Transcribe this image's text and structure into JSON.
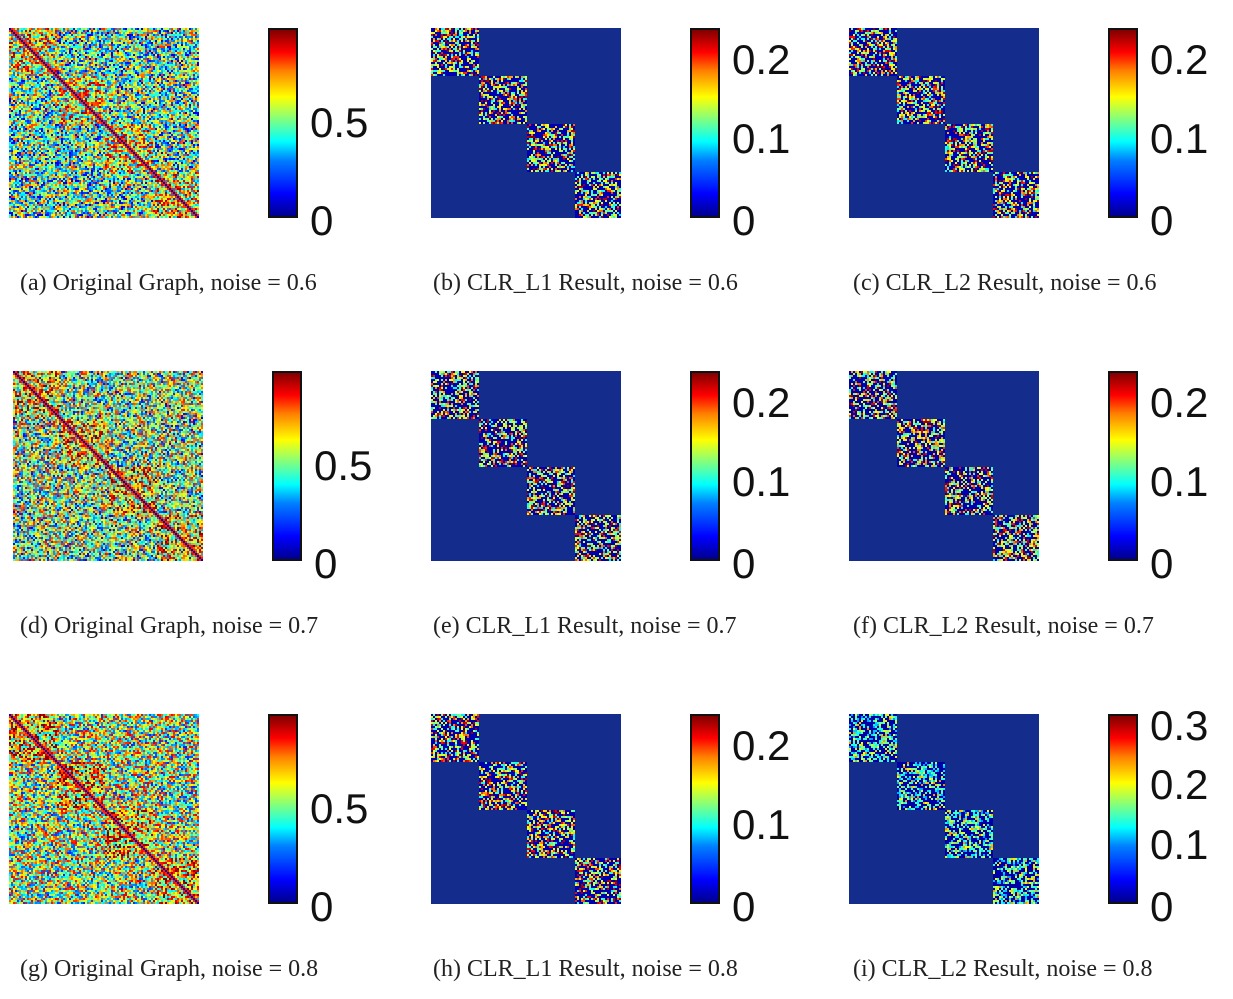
{
  "figure": {
    "panels": [
      {
        "id": "a",
        "caption": "(a) Original Graph, noise = 0.6",
        "kind": "original",
        "noise": 0.6,
        "colorbar_ticks": [
          {
            "label": "0",
            "value": 0
          },
          {
            "label": "0.5",
            "value": 0.5
          }
        ],
        "colorbar_max": 1.0
      },
      {
        "id": "b",
        "caption": "(b) CLR_L1 Result, noise = 0.6",
        "kind": "result",
        "noise": 0.6,
        "colorbar_ticks": [
          {
            "label": "0",
            "value": 0
          },
          {
            "label": "0.1",
            "value": 0.1
          },
          {
            "label": "0.2",
            "value": 0.2
          }
        ],
        "colorbar_max": 0.24
      },
      {
        "id": "c",
        "caption": "(c) CLR_L2 Result, noise = 0.6",
        "kind": "result",
        "noise": 0.6,
        "colorbar_ticks": [
          {
            "label": "0",
            "value": 0
          },
          {
            "label": "0.1",
            "value": 0.1
          },
          {
            "label": "0.2",
            "value": 0.2
          }
        ],
        "colorbar_max": 0.24
      },
      {
        "id": "d",
        "caption": "(d) Original Graph, noise = 0.7",
        "kind": "original",
        "noise": 0.7,
        "colorbar_ticks": [
          {
            "label": "0",
            "value": 0
          },
          {
            "label": "0.5",
            "value": 0.5
          }
        ],
        "colorbar_max": 1.0
      },
      {
        "id": "e",
        "caption": "(e) CLR_L1 Result, noise = 0.7",
        "kind": "result",
        "noise": 0.7,
        "colorbar_ticks": [
          {
            "label": "0",
            "value": 0
          },
          {
            "label": "0.1",
            "value": 0.1
          },
          {
            "label": "0.2",
            "value": 0.2
          }
        ],
        "colorbar_max": 0.24
      },
      {
        "id": "f",
        "caption": "(f) CLR_L2 Result, noise = 0.7",
        "kind": "result",
        "noise": 0.7,
        "colorbar_ticks": [
          {
            "label": "0",
            "value": 0
          },
          {
            "label": "0.1",
            "value": 0.1
          },
          {
            "label": "0.2",
            "value": 0.2
          }
        ],
        "colorbar_max": 0.24
      },
      {
        "id": "g",
        "caption": "(g) Original Graph, noise = 0.8",
        "kind": "original",
        "noise": 0.8,
        "colorbar_ticks": [
          {
            "label": "0",
            "value": 0
          },
          {
            "label": "0.5",
            "value": 0.5
          }
        ],
        "colorbar_max": 1.0
      },
      {
        "id": "h",
        "caption": "(h) CLR_L1 Result, noise = 0.8",
        "kind": "result",
        "noise": 0.8,
        "colorbar_ticks": [
          {
            "label": "0",
            "value": 0
          },
          {
            "label": "0.1",
            "value": 0.1
          },
          {
            "label": "0.2",
            "value": 0.2
          }
        ],
        "colorbar_max": 0.24
      },
      {
        "id": "i",
        "caption": "(i) CLR_L2 Result, noise = 0.8",
        "kind": "result",
        "noise": 0.8,
        "colorbar_ticks": [
          {
            "label": "0",
            "value": 0
          },
          {
            "label": "0.1",
            "value": 0.1
          },
          {
            "label": "0.2",
            "value": 0.2
          },
          {
            "label": "0.3",
            "value": 0.3
          }
        ],
        "colorbar_max": 0.32
      }
    ]
  }
}
